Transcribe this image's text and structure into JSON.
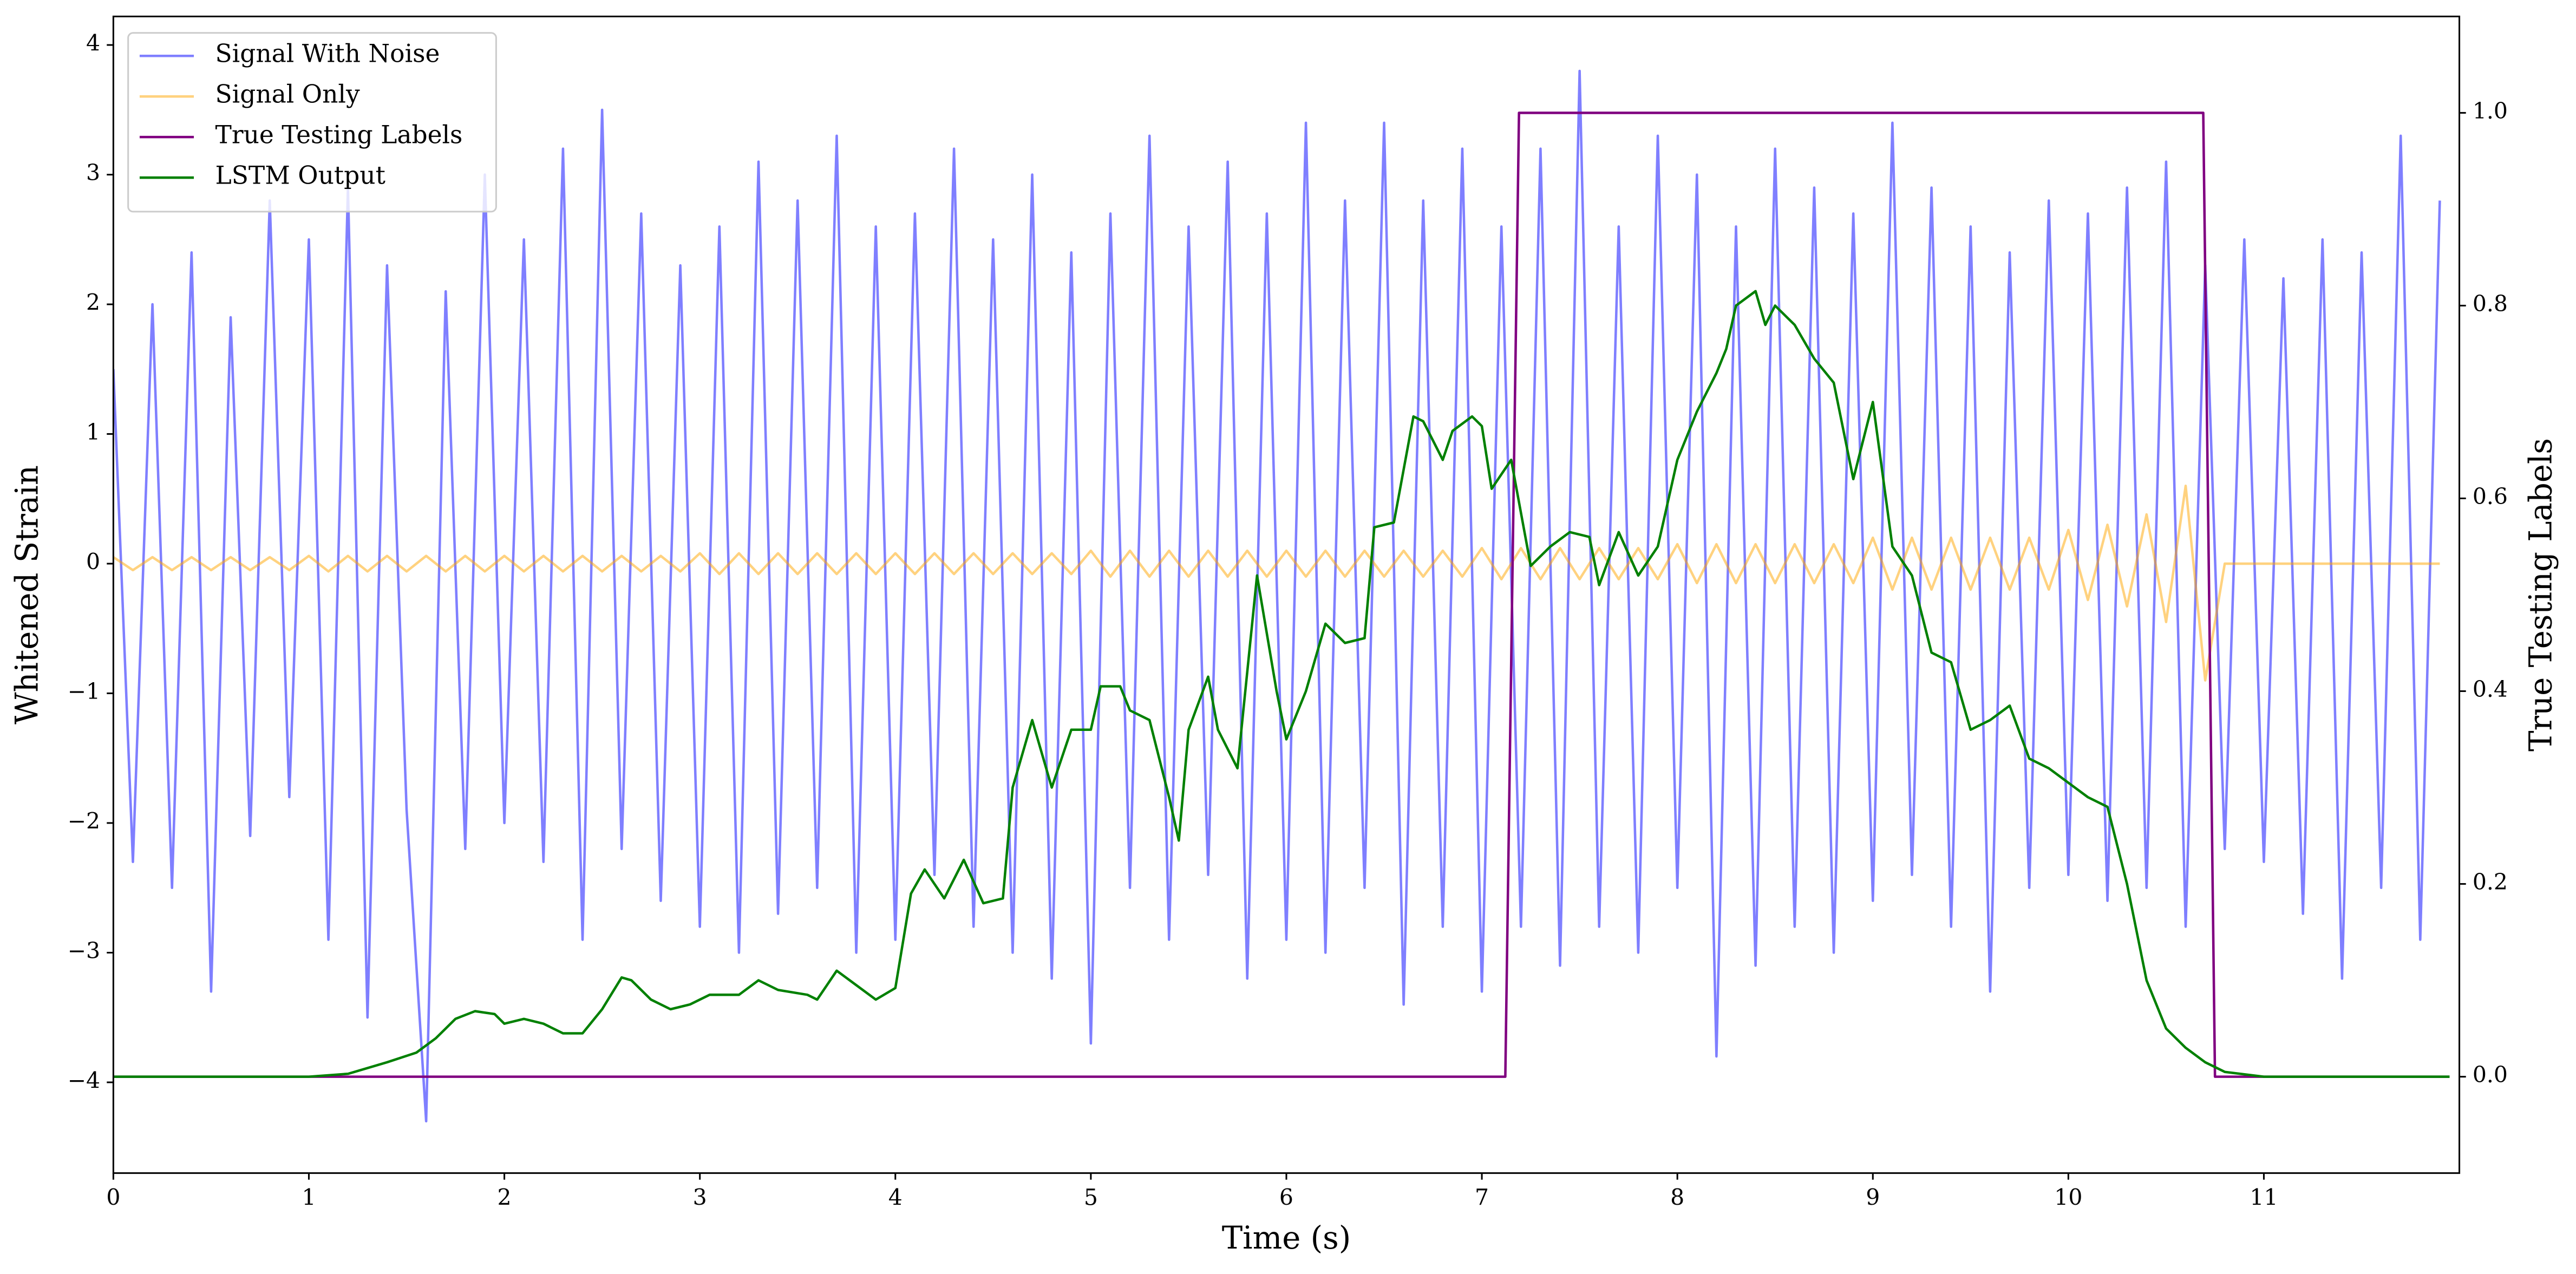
{
  "chart_data": {
    "type": "line",
    "xlabel": "Time (s)",
    "ylabel": "Whitened Strain",
    "y2label": "True Testing Labels",
    "xlim": [
      0,
      12
    ],
    "ylim": [
      -4.7,
      4.22
    ],
    "y2lim": [
      -0.1,
      1.1
    ],
    "xticks": [
      0,
      1,
      2,
      3,
      4,
      5,
      6,
      7,
      8,
      9,
      10,
      11
    ],
    "yticks": [
      {
        "value": -4,
        "label": "−4"
      },
      {
        "value": -3,
        "label": "−3"
      },
      {
        "value": -2,
        "label": "−2"
      },
      {
        "value": -1,
        "label": "−1"
      },
      0,
      1,
      2,
      3,
      4
    ],
    "y2ticks": [
      {
        "value": 0,
        "label": "0.0"
      },
      {
        "value": 0.2,
        "label": "0.2"
      },
      {
        "value": 0.4,
        "label": "0.4"
      },
      {
        "value": 0.6,
        "label": "0.6"
      },
      {
        "value": 0.8,
        "label": "0.8"
      },
      {
        "value": 1,
        "label": "1.0"
      }
    ],
    "legend": "upper left",
    "series": [
      {
        "name": "Signal With Noise",
        "color": "#0000ff",
        "alpha": 0.5,
        "x": [
          0,
          0.1,
          0.2,
          0.3,
          0.4,
          0.5,
          0.6,
          0.7,
          0.8,
          0.9,
          1,
          1.1,
          1.2,
          1.3,
          1.4,
          1.5,
          1.6,
          1.7,
          1.8,
          1.9,
          2,
          2.1,
          2.2,
          2.3,
          2.4,
          2.5,
          2.6,
          2.7,
          2.8,
          2.9,
          3,
          3.1,
          3.2,
          3.3,
          3.4,
          3.5,
          3.6,
          3.7,
          3.8,
          3.9,
          4,
          4.1,
          4.2,
          4.3,
          4.4,
          4.5,
          4.6,
          4.7,
          4.8,
          4.9,
          5,
          5.1,
          5.2,
          5.3,
          5.4,
          5.5,
          5.6,
          5.7,
          5.8,
          5.9,
          6,
          6.1,
          6.2,
          6.3,
          6.4,
          6.5,
          6.6,
          6.7,
          6.8,
          6.9,
          7,
          7.1,
          7.2,
          7.3,
          7.4,
          7.5,
          7.6,
          7.7,
          7.8,
          7.9,
          8,
          8.1,
          8.2,
          8.3,
          8.4,
          8.5,
          8.6,
          8.7,
          8.8,
          8.9,
          9,
          9.1,
          9.2,
          9.3,
          9.4,
          9.5,
          9.6,
          9.7,
          9.8,
          9.9,
          10,
          10.1,
          10.2,
          10.3,
          10.4,
          10.5,
          10.6,
          10.7,
          10.8,
          10.9,
          11,
          11.1,
          11.2,
          11.3,
          11.4,
          11.5,
          11.6,
          11.7,
          11.8,
          11.9
        ],
        "values": [
          1.5,
          -2.3,
          2.0,
          -2.5,
          2.4,
          -3.3,
          1.9,
          -2.1,
          2.8,
          -1.8,
          2.5,
          -2.9,
          2.9,
          -3.5,
          2.3,
          -1.9,
          -4.3,
          2.1,
          -2.2,
          3.0,
          -2.0,
          2.5,
          -2.3,
          3.2,
          -2.9,
          3.5,
          -2.2,
          2.7,
          -2.6,
          2.3,
          -2.8,
          2.6,
          -3.0,
          3.1,
          -2.7,
          2.8,
          -2.5,
          3.3,
          -3.0,
          2.6,
          -2.9,
          2.7,
          -2.4,
          3.2,
          -2.8,
          2.5,
          -3.0,
          3.0,
          -3.2,
          2.4,
          -3.7,
          2.7,
          -2.5,
          3.3,
          -2.9,
          2.6,
          -2.4,
          3.1,
          -3.2,
          2.7,
          -2.9,
          3.4,
          -3.0,
          2.8,
          -2.5,
          3.4,
          -3.4,
          2.8,
          -2.8,
          3.2,
          -3.3,
          2.6,
          -2.8,
          3.2,
          -3.1,
          3.8,
          -2.8,
          2.6,
          -3.0,
          3.3,
          -2.5,
          3.0,
          -3.8,
          2.6,
          -3.1,
          3.2,
          -2.8,
          2.9,
          -3.0,
          2.7,
          -2.6,
          3.4,
          -2.4,
          2.9,
          -2.8,
          2.6,
          -3.3,
          2.4,
          -2.5,
          2.8,
          -2.4,
          2.7,
          -2.6,
          2.9,
          -2.5,
          3.1,
          -2.8,
          2.3,
          -2.2,
          2.5,
          -2.3,
          2.2,
          -2.7,
          2.5,
          -3.2,
          2.4,
          -2.5,
          3.3,
          -2.9,
          2.8
        ]
      },
      {
        "name": "Signal Only",
        "color": "#ffa500",
        "alpha": 0.5,
        "x": [
          0,
          0.1,
          0.2,
          0.3,
          0.4,
          0.5,
          0.6,
          0.7,
          0.8,
          0.9,
          1,
          1.1,
          1.2,
          1.3,
          1.4,
          1.5,
          1.6,
          1.7,
          1.8,
          1.9,
          2,
          2.1,
          2.2,
          2.3,
          2.4,
          2.5,
          2.6,
          2.7,
          2.8,
          2.9,
          3,
          3.1,
          3.2,
          3.3,
          3.4,
          3.5,
          3.6,
          3.7,
          3.8,
          3.9,
          4,
          4.1,
          4.2,
          4.3,
          4.4,
          4.5,
          4.6,
          4.7,
          4.8,
          4.9,
          5,
          5.1,
          5.2,
          5.3,
          5.4,
          5.5,
          5.6,
          5.7,
          5.8,
          5.9,
          6,
          6.1,
          6.2,
          6.3,
          6.4,
          6.5,
          6.6,
          6.7,
          6.8,
          6.9,
          7,
          7.1,
          7.2,
          7.3,
          7.4,
          7.5,
          7.6,
          7.7,
          7.8,
          7.9,
          8,
          8.1,
          8.2,
          8.3,
          8.4,
          8.5,
          8.6,
          8.7,
          8.8,
          8.9,
          9,
          9.1,
          9.2,
          9.3,
          9.4,
          9.5,
          9.6,
          9.7,
          9.8,
          9.9,
          10,
          10.1,
          10.2,
          10.3,
          10.4,
          10.5,
          10.6,
          10.7,
          10.8,
          10.9,
          11,
          11.1,
          11.2,
          11.3,
          11.4,
          11.5,
          11.6,
          11.7,
          11.8,
          11.9
        ],
        "values": [
          0.05,
          -0.05,
          0.05,
          -0.05,
          0.05,
          -0.05,
          0.05,
          -0.05,
          0.05,
          -0.05,
          0.06,
          -0.06,
          0.06,
          -0.06,
          0.06,
          -0.06,
          0.06,
          -0.06,
          0.06,
          -0.06,
          0.06,
          -0.06,
          0.06,
          -0.06,
          0.06,
          -0.06,
          0.06,
          -0.06,
          0.06,
          -0.06,
          0.08,
          -0.08,
          0.08,
          -0.08,
          0.08,
          -0.08,
          0.08,
          -0.08,
          0.08,
          -0.08,
          0.08,
          -0.08,
          0.08,
          -0.08,
          0.08,
          -0.08,
          0.08,
          -0.08,
          0.08,
          -0.08,
          0.1,
          -0.1,
          0.1,
          -0.1,
          0.1,
          -0.1,
          0.1,
          -0.1,
          0.1,
          -0.1,
          0.1,
          -0.1,
          0.1,
          -0.1,
          0.1,
          -0.1,
          0.1,
          -0.1,
          0.1,
          -0.1,
          0.12,
          -0.12,
          0.12,
          -0.12,
          0.12,
          -0.12,
          0.12,
          -0.12,
          0.12,
          -0.12,
          0.15,
          -0.15,
          0.15,
          -0.15,
          0.15,
          -0.15,
          0.15,
          -0.15,
          0.15,
          -0.15,
          0.2,
          -0.2,
          0.2,
          -0.2,
          0.2,
          -0.2,
          0.2,
          -0.2,
          0.2,
          -0.2,
          0.26,
          -0.28,
          0.3,
          -0.33,
          0.38,
          -0.45,
          0.6,
          -0.9,
          0,
          0,
          0,
          0,
          0,
          0,
          0,
          0,
          0,
          0,
          0,
          0
        ]
      },
      {
        "name": "True Testing Labels",
        "color": "#800080",
        "axis": "y2",
        "x": [
          0,
          7.12,
          7.19,
          10.69,
          10.75,
          11.95
        ],
        "values": [
          0,
          0,
          1,
          1,
          0,
          0
        ]
      },
      {
        "name": "LSTM Output",
        "color": "#008000",
        "axis": "y2",
        "x": [
          0,
          1,
          1.2,
          1.4,
          1.55,
          1.65,
          1.75,
          1.85,
          1.95,
          2,
          2.1,
          2.2,
          2.3,
          2.4,
          2.5,
          2.6,
          2.65,
          2.75,
          2.85,
          2.95,
          3.05,
          3.2,
          3.3,
          3.4,
          3.55,
          3.6,
          3.7,
          3.8,
          3.9,
          4,
          4.08,
          4.15,
          4.25,
          4.35,
          4.45,
          4.55,
          4.6,
          4.7,
          4.8,
          4.9,
          5,
          5.05,
          5.15,
          5.2,
          5.3,
          5.4,
          5.45,
          5.5,
          5.6,
          5.65,
          5.75,
          5.85,
          5.95,
          6,
          6.1,
          6.2,
          6.3,
          6.4,
          6.45,
          6.55,
          6.65,
          6.7,
          6.8,
          6.85,
          6.95,
          7,
          7.05,
          7.15,
          7.25,
          7.35,
          7.45,
          7.55,
          7.6,
          7.7,
          7.8,
          7.9,
          8,
          8.1,
          8.2,
          8.25,
          8.3,
          8.4,
          8.45,
          8.5,
          8.6,
          8.7,
          8.8,
          8.9,
          9,
          9.1,
          9.2,
          9.3,
          9.4,
          9.5,
          9.6,
          9.7,
          9.8,
          9.9,
          10,
          10.1,
          10.2,
          10.3,
          10.4,
          10.5,
          10.6,
          10.7,
          10.8,
          11,
          11.95
        ],
        "values": [
          0,
          0,
          0.003,
          0.015,
          0.025,
          0.04,
          0.06,
          0.068,
          0.065,
          0.055,
          0.06,
          0.055,
          0.045,
          0.045,
          0.07,
          0.103,
          0.1,
          0.08,
          0.07,
          0.075,
          0.085,
          0.085,
          0.1,
          0.09,
          0.085,
          0.08,
          0.11,
          0.095,
          0.08,
          0.092,
          0.19,
          0.215,
          0.185,
          0.225,
          0.18,
          0.185,
          0.3,
          0.37,
          0.3,
          0.36,
          0.36,
          0.405,
          0.405,
          0.38,
          0.37,
          0.29,
          0.245,
          0.36,
          0.415,
          0.36,
          0.32,
          0.52,
          0.4,
          0.35,
          0.4,
          0.47,
          0.45,
          0.455,
          0.57,
          0.575,
          0.685,
          0.68,
          0.64,
          0.67,
          0.685,
          0.675,
          0.61,
          0.64,
          0.53,
          0.55,
          0.565,
          0.56,
          0.51,
          0.565,
          0.52,
          0.55,
          0.64,
          0.69,
          0.73,
          0.755,
          0.8,
          0.815,
          0.78,
          0.8,
          0.78,
          0.745,
          0.72,
          0.62,
          0.7,
          0.55,
          0.52,
          0.44,
          0.43,
          0.36,
          0.37,
          0.385,
          0.33,
          0.32,
          0.305,
          0.29,
          0.28,
          0.2,
          0.1,
          0.05,
          0.03,
          0.015,
          0.005,
          0,
          0
        ]
      }
    ]
  }
}
